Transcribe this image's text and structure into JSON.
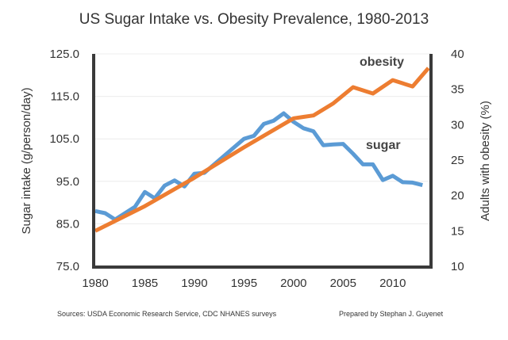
{
  "chart_data": {
    "type": "line",
    "title": "US Sugar Intake vs. Obesity Prevalence, 1980-2013",
    "xlabel": "",
    "ylabel": "Sugar intake (g/person/day)",
    "y2label": "Adults with obesity (%)",
    "xlim": [
      1980,
      2013.7
    ],
    "ylim": [
      75,
      125
    ],
    "y2lim": [
      10,
      40
    ],
    "xticks": [
      "1980",
      "1985",
      "1990",
      "1995",
      "2000",
      "2005",
      "2010"
    ],
    "yticks": [
      "125.0",
      "115.0",
      "105.0",
      "95.0",
      "85.0",
      "75.0"
    ],
    "y2ticks": [
      "40",
      "35",
      "30",
      "25",
      "20",
      "15",
      "10"
    ],
    "grid": true,
    "series": [
      {
        "name": "sugar",
        "axis": "left",
        "color": "#5b9bd5",
        "x": [
          1980,
          1981,
          1982,
          1983,
          1984,
          1985,
          1986,
          1987,
          1988,
          1989,
          1990,
          1991,
          1992,
          1993,
          1994,
          1995,
          1996,
          1997,
          1998,
          1999,
          2000,
          2001,
          2002,
          2003,
          2004,
          2005,
          2006,
          2007,
          2008,
          2009,
          2010,
          2011,
          2012,
          2013
        ],
        "y": [
          88,
          87.5,
          86,
          87.5,
          89,
          92.5,
          91,
          94,
          95.2,
          93.8,
          96.8,
          97,
          99,
          101,
          103,
          105,
          105.7,
          108.5,
          109.3,
          111,
          109,
          107.5,
          106.8,
          103.5,
          103.7,
          103.8,
          101.5,
          99,
          99,
          95.3,
          96.3,
          94.8,
          94.7,
          94.1
        ]
      },
      {
        "name": "obesity",
        "axis": "right",
        "color": "#ed7d31",
        "x": [
          1980,
          1985,
          1990,
          1995,
          2000,
          2002,
          2004,
          2006,
          2008,
          2010,
          2012,
          2013.6
        ],
        "y": [
          15,
          18.5,
          22.5,
          26.8,
          30.9,
          31.3,
          33,
          35.3,
          34.4,
          36.3,
          35.4,
          38
        ]
      }
    ]
  },
  "footer": {
    "sources": "Sources: USDA Economic Research Service, CDC NHANES surveys",
    "prepared_by": "Prepared by Stephan J. Guyenet"
  }
}
